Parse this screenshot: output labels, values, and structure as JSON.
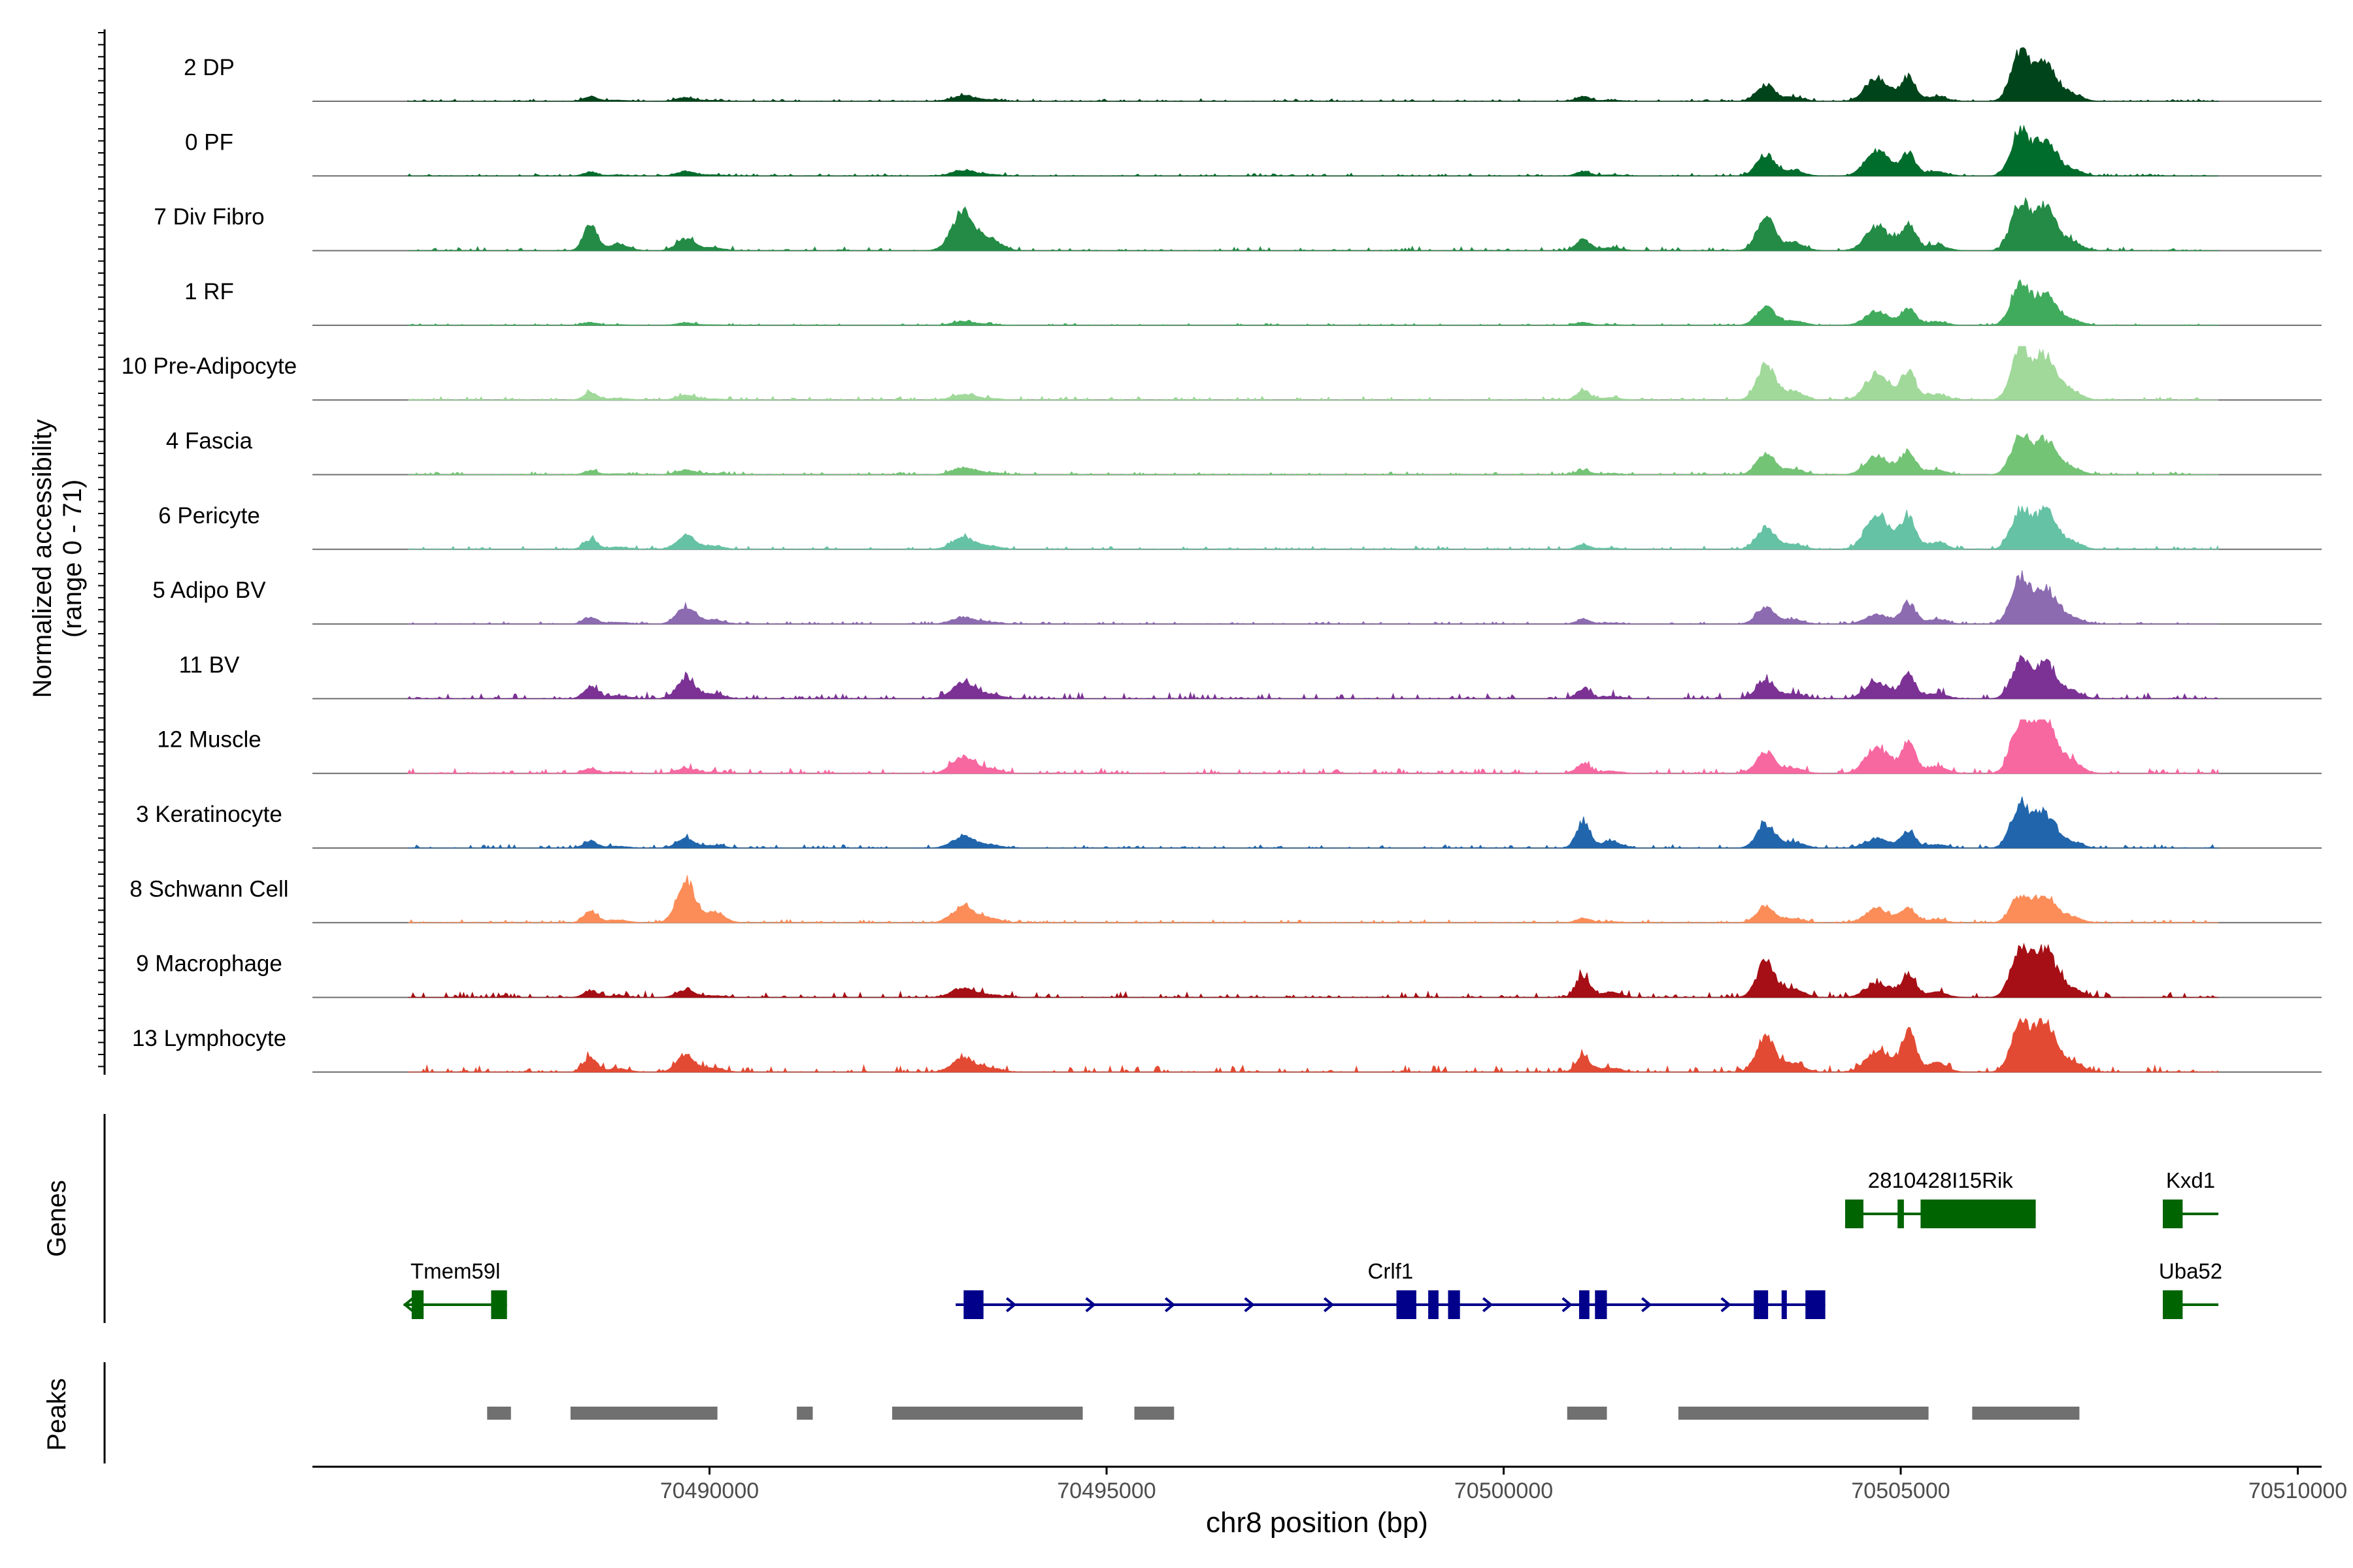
{
  "chart_data": {
    "type": "area",
    "title": "",
    "ylabel_line1": "Normalized accessibility",
    "ylabel_line2": "(range 0 - 71)",
    "xlabel": "chr8 position (bp)",
    "xlim": [
      70485000,
      70510300
    ],
    "x_ticks": [
      70490000,
      70495000,
      70500000,
      70505000,
      70510000
    ],
    "x_tick_labels": [
      "70490000",
      "70495000",
      "70500000",
      "70505000",
      "70510000"
    ],
    "y_range": [
      0,
      71
    ],
    "track_region": [
      70486200,
      70509000
    ],
    "peak_positions": [
      70488500,
      70489700,
      70493200,
      70501000,
      70503300,
      70504700,
      70505100,
      70506500,
      70506800
    ],
    "tracks": [
      {
        "label": "2 DP",
        "color": "#00441b",
        "peaks": [
          0.1,
          0.08,
          0.12,
          0.1,
          0.35,
          0.5,
          0.4,
          1.0,
          0.6
        ],
        "noise": 0.05
      },
      {
        "label": "0 PF",
        "color": "#006d2c",
        "peaks": [
          0.08,
          0.1,
          0.12,
          0.1,
          0.45,
          0.55,
          0.35,
          0.9,
          0.55
        ],
        "noise": 0.05
      },
      {
        "label": "7 Div Fibro",
        "color": "#238b45",
        "peaks": [
          0.55,
          0.25,
          0.85,
          0.25,
          0.7,
          0.5,
          0.45,
          0.95,
          0.7
        ],
        "noise": 0.08
      },
      {
        "label": "1 RF",
        "color": "#41ab5d",
        "peaks": [
          0.06,
          0.05,
          0.08,
          0.06,
          0.4,
          0.3,
          0.3,
          0.85,
          0.45
        ],
        "noise": 0.04
      },
      {
        "label": "10 Pre-Adipocyte",
        "color": "#a1d99b",
        "peaks": [
          0.15,
          0.1,
          0.12,
          0.2,
          0.75,
          0.55,
          0.5,
          1.0,
          0.7
        ],
        "noise": 0.07
      },
      {
        "label": "4 Fascia",
        "color": "#74c476",
        "peaks": [
          0.08,
          0.1,
          0.15,
          0.1,
          0.45,
          0.4,
          0.4,
          0.8,
          0.55
        ],
        "noise": 0.06
      },
      {
        "label": "6 Pericyte",
        "color": "#66c2a4",
        "peaks": [
          0.2,
          0.3,
          0.25,
          0.1,
          0.45,
          0.75,
          0.55,
          0.8,
          0.6
        ],
        "noise": 0.07
      },
      {
        "label": "5 Adipo BV",
        "color": "#8c6bb1",
        "peaks": [
          0.15,
          0.35,
          0.15,
          0.1,
          0.35,
          0.2,
          0.4,
          0.95,
          0.55
        ],
        "noise": 0.05
      },
      {
        "label": "11 BV",
        "color": "#7b3294",
        "peaks": [
          0.25,
          0.4,
          0.35,
          0.2,
          0.4,
          0.35,
          0.45,
          0.7,
          0.6
        ],
        "noise": 0.12
      },
      {
        "label": "12 Muscle",
        "color": "#f768a1",
        "peaks": [
          0.1,
          0.1,
          0.35,
          0.2,
          0.45,
          0.55,
          0.55,
          1.0,
          0.95
        ],
        "noise": 0.1
      },
      {
        "label": "3 Keratinocyte",
        "color": "#2166ac",
        "peaks": [
          0.15,
          0.2,
          0.25,
          0.55,
          0.5,
          0.2,
          0.3,
          0.9,
          0.5
        ],
        "noise": 0.07
      },
      {
        "label": "8 Schwann Cell",
        "color": "#fc8d59",
        "peaks": [
          0.25,
          0.9,
          0.35,
          0.1,
          0.35,
          0.3,
          0.25,
          0.55,
          0.45
        ],
        "noise": 0.06
      },
      {
        "label": "9 Macrophage",
        "color": "#a50f15",
        "peaks": [
          0.15,
          0.15,
          0.2,
          0.45,
          0.75,
          0.3,
          0.45,
          1.0,
          0.75
        ],
        "noise": 0.12
      },
      {
        "label": "13 Lymphocyte",
        "color": "#e34a33",
        "peaks": [
          0.3,
          0.35,
          0.3,
          0.35,
          0.75,
          0.45,
          0.8,
          1.0,
          0.85
        ],
        "noise": 0.14
      }
    ],
    "genes_label": "Genes",
    "genes": [
      {
        "name": "2810428I15Rik",
        "strand": "",
        "color": "#006400",
        "row": 0,
        "start": 70504300,
        "end": 70506700,
        "exons": [
          [
            70504300,
            70504530
          ],
          [
            70504960,
            70505040
          ],
          [
            70505250,
            70506700
          ]
        ]
      },
      {
        "name": "Kxd1",
        "strand": "",
        "color": "#006400",
        "row": 0,
        "start": 70508300,
        "end": 70509000,
        "exons": [
          [
            70508300,
            70508550
          ]
        ]
      },
      {
        "name": "Tmem59l",
        "strand": "-",
        "color": "#006400",
        "row": 1,
        "start": 70486150,
        "end": 70487450,
        "exons": [
          [
            70486250,
            70486400
          ],
          [
            70487250,
            70487450
          ]
        ]
      },
      {
        "name": "Crlf1",
        "strand": "+",
        "color": "#00008b",
        "row": 1,
        "start": 70493100,
        "end": 70504050,
        "exons": [
          [
            70493200,
            70493450
          ],
          [
            70498650,
            70498900
          ],
          [
            70499050,
            70499180
          ],
          [
            70499300,
            70499450
          ],
          [
            70500950,
            70501080
          ],
          [
            70501150,
            70501300
          ],
          [
            70503150,
            70503330
          ],
          [
            70503500,
            70503550
          ],
          [
            70503800,
            70504050
          ]
        ]
      },
      {
        "name": "Uba52",
        "strand": "",
        "color": "#006400",
        "row": 1,
        "start": 70508300,
        "end": 70509000,
        "exons": [
          [
            70508300,
            70508550
          ]
        ]
      }
    ],
    "peaks_label": "Peaks",
    "peak_color": "#707070",
    "peak_regions": [
      [
        70487200,
        70487500
      ],
      [
        70488250,
        70490100
      ],
      [
        70491100,
        70491300
      ],
      [
        70492300,
        70494700
      ],
      [
        70495350,
        70495850
      ],
      [
        70500800,
        70501300
      ],
      [
        70502200,
        70505350
      ],
      [
        70505900,
        70507250
      ]
    ]
  }
}
